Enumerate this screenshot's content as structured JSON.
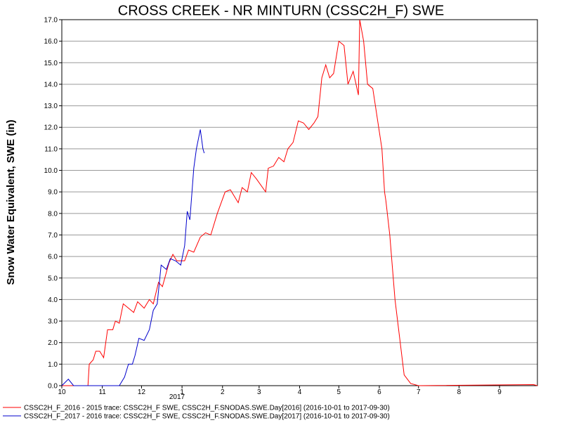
{
  "chart_data": {
    "type": "line",
    "title": "CROSS CREEK - NR MINTURN (CSSC2H_F) SWE",
    "y_label": "Snow Water Equivalent, SWE (in)",
    "x_annotation": "2017",
    "xlim": [
      0,
      364
    ],
    "xticks": [
      {
        "value": 0,
        "label": "10"
      },
      {
        "value": 31,
        "label": "11"
      },
      {
        "value": 61,
        "label": "12"
      },
      {
        "value": 92,
        "label": "1"
      },
      {
        "value": 123,
        "label": "2"
      },
      {
        "value": 151,
        "label": "3"
      },
      {
        "value": 182,
        "label": "4"
      },
      {
        "value": 212,
        "label": "5"
      },
      {
        "value": 243,
        "label": "6"
      },
      {
        "value": 273,
        "label": "7"
      },
      {
        "value": 304,
        "label": "8"
      },
      {
        "value": 335,
        "label": "9"
      }
    ],
    "ylim": [
      0,
      17
    ],
    "yticks": [
      {
        "value": 0,
        "label": "0.0"
      },
      {
        "value": 1,
        "label": "1.0"
      },
      {
        "value": 2,
        "label": "2.0"
      },
      {
        "value": 3,
        "label": "3.0"
      },
      {
        "value": 4,
        "label": "4.0"
      },
      {
        "value": 5,
        "label": "5.0"
      },
      {
        "value": 6,
        "label": "6.0"
      },
      {
        "value": 7,
        "label": "7.0"
      },
      {
        "value": 8,
        "label": "8.0"
      },
      {
        "value": 9,
        "label": "9.0"
      },
      {
        "value": 10,
        "label": "10.0"
      },
      {
        "value": 11,
        "label": "11.0"
      },
      {
        "value": 12,
        "label": "12.0"
      },
      {
        "value": 13,
        "label": "13.0"
      },
      {
        "value": 14,
        "label": "14.0"
      },
      {
        "value": 15,
        "label": "15.0"
      },
      {
        "value": 16,
        "label": "16.0"
      },
      {
        "value": 17,
        "label": "17.0"
      }
    ],
    "grid": true,
    "legend": "bottom",
    "series": [
      {
        "name": "CSSC2H_F_2016 - 2015 trace: CSSC2H_F SWE, CSSC2H_F.SNODAS.SWE.Day[2016] (2016-10-01 to 2017-09-30)",
        "color": "#ff0000",
        "x": [
          0,
          20,
          21,
          24,
          26,
          29,
          32,
          35,
          39,
          41,
          44,
          47,
          51,
          55,
          58,
          63,
          67,
          70,
          74,
          77,
          82,
          85,
          88,
          94,
          97,
          101,
          106,
          110,
          114,
          119,
          125,
          129,
          135,
          138,
          142,
          145,
          149,
          156,
          158,
          162,
          166,
          170,
          173,
          177,
          181,
          185,
          189,
          193,
          196,
          199,
          202,
          205,
          208,
          212,
          216,
          219,
          223,
          227,
          228,
          231,
          234,
          238,
          240,
          245,
          247,
          248,
          251,
          255,
          259,
          262,
          267,
          273,
          361,
          364
        ],
        "values": [
          0,
          0,
          1.0,
          1.2,
          1.6,
          1.6,
          1.3,
          2.6,
          2.6,
          3.0,
          2.9,
          3.8,
          3.6,
          3.4,
          3.9,
          3.6,
          4.0,
          3.8,
          4.8,
          4.6,
          5.7,
          6.1,
          5.8,
          5.8,
          6.3,
          6.2,
          6.9,
          7.1,
          7.0,
          8.0,
          9.0,
          9.1,
          8.5,
          9.2,
          9.0,
          9.9,
          9.6,
          9.0,
          10.1,
          10.2,
          10.6,
          10.4,
          11.0,
          11.3,
          12.3,
          12.2,
          11.9,
          12.2,
          12.5,
          14.3,
          14.9,
          14.3,
          14.5,
          16.0,
          15.8,
          14.0,
          14.6,
          13.5,
          17.0,
          16.0,
          14.0,
          13.8,
          13.0,
          11.0,
          9.0,
          8.6,
          7.0,
          4.0,
          2.0,
          0.5,
          0.1,
          0,
          0.05,
          0
        ]
      },
      {
        "name": "CSSC2H_F_2017 - 2016 trace: CSSC2H_F SWE, CSSC2H_F.SNODAS.SWE.Day[2017] (2016-10-01 to 2017-09-30)",
        "color": "#0000cc",
        "x": [
          0,
          5,
          9,
          44,
          48,
          51,
          54,
          56,
          59,
          63,
          67,
          70,
          73,
          76,
          80,
          83,
          87,
          91,
          94,
          96,
          98,
          101,
          103,
          106,
          108,
          109
        ],
        "values": [
          0,
          0.3,
          0,
          0,
          0.4,
          1.0,
          1.0,
          1.4,
          2.2,
          2.1,
          2.6,
          3.5,
          3.8,
          5.6,
          5.4,
          5.9,
          5.8,
          5.6,
          6.5,
          8.1,
          7.7,
          10.1,
          11.0,
          11.9,
          11.0,
          10.8
        ]
      }
    ]
  }
}
